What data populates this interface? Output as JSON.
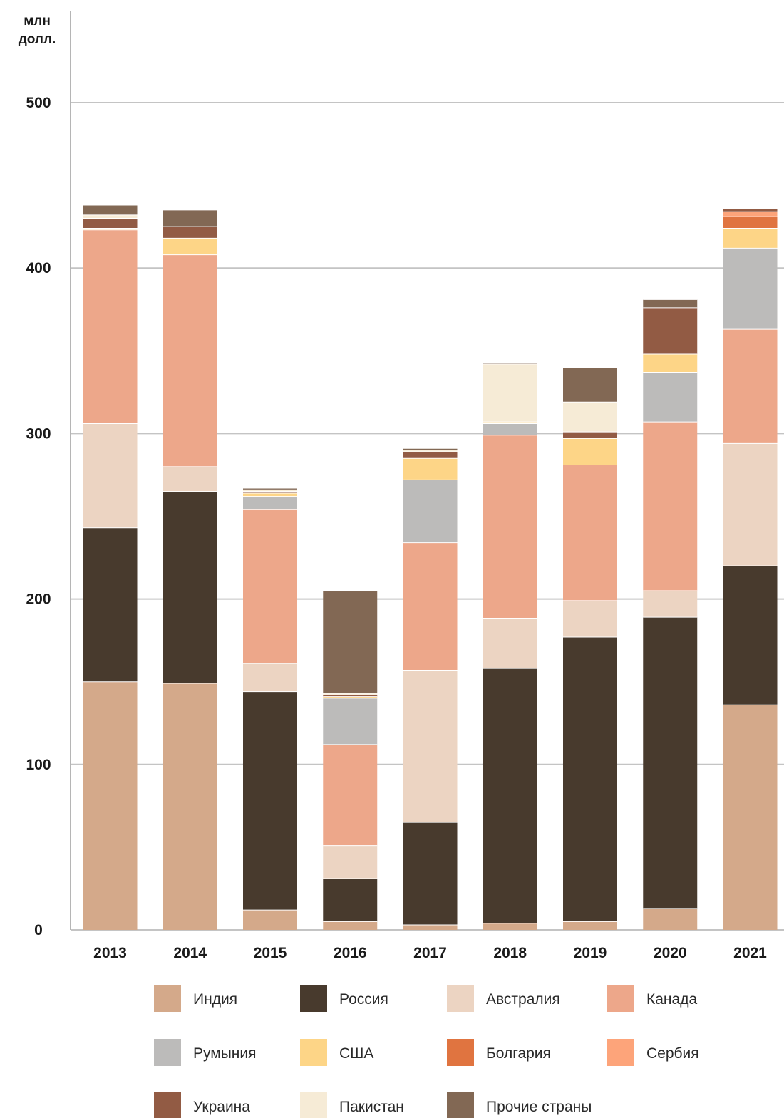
{
  "chart_data": {
    "type": "bar",
    "stacked": true,
    "unit_label": [
      "млн",
      "долл."
    ],
    "categories": [
      "2013",
      "2014",
      "2015",
      "2016",
      "2017",
      "2018",
      "2019",
      "2020",
      "2021"
    ],
    "ylim": [
      0,
      550
    ],
    "yticks": [
      0,
      100,
      200,
      300,
      400,
      500
    ],
    "grid": true,
    "legend_position": "bottom",
    "series": [
      {
        "name": "Индия",
        "color": "#d4a98a",
        "values": [
          150,
          149,
          12,
          5,
          3,
          4,
          5,
          13,
          136
        ]
      },
      {
        "name": "Россия",
        "color": "#483a2d",
        "values": [
          93,
          116,
          132,
          26,
          62,
          154,
          172,
          176,
          84
        ]
      },
      {
        "name": "Австралия",
        "color": "#ecd4c2",
        "values": [
          63,
          15,
          17,
          20,
          92,
          30,
          22,
          16,
          74
        ]
      },
      {
        "name": "Канада",
        "color": "#eda78a",
        "values": [
          117,
          128,
          93,
          61,
          77,
          111,
          82,
          102,
          69
        ]
      },
      {
        "name": "Румыния",
        "color": "#bcbbba",
        "values": [
          0,
          0,
          8,
          28,
          38,
          7,
          0,
          30,
          49
        ]
      },
      {
        "name": "США",
        "color": "#fdd587",
        "values": [
          1,
          10,
          2,
          1,
          13,
          1,
          16,
          11,
          12
        ]
      },
      {
        "name": "Болгария",
        "color": "#e07440",
        "values": [
          0,
          0,
          0,
          0,
          0,
          0,
          0,
          0,
          7
        ]
      },
      {
        "name": "Сербия",
        "color": "#fda47a",
        "values": [
          0,
          0,
          0,
          0,
          0,
          0,
          0,
          0,
          3
        ]
      },
      {
        "name": "Украина",
        "color": "#925b44",
        "values": [
          6,
          7,
          1,
          1,
          4,
          0,
          4,
          28,
          2
        ]
      },
      {
        "name": "Пакистан",
        "color": "#f6ebd6",
        "values": [
          2,
          0,
          1,
          1,
          1,
          35,
          18,
          0,
          0
        ]
      },
      {
        "name": "Прочие страны",
        "color": "#826854",
        "values": [
          6,
          10,
          1,
          62,
          1,
          1,
          21,
          5,
          0
        ]
      }
    ]
  }
}
